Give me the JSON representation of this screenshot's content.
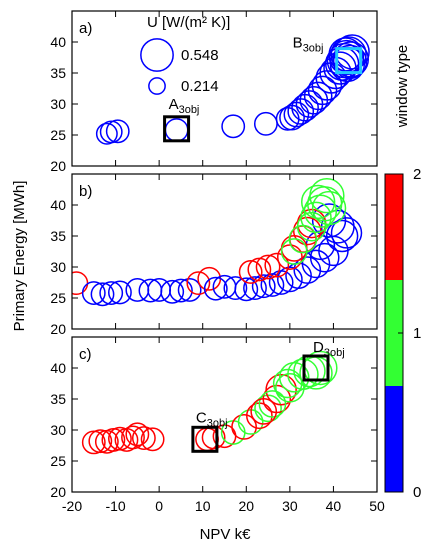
{
  "chart_data": {
    "type": "scatter",
    "xlabel": "NPV k€",
    "ylabel": "Primary Energy [MWh]",
    "xlim": [
      -20,
      50
    ],
    "ylim": [
      20,
      45
    ],
    "xticks": [
      -20,
      -10,
      0,
      10,
      20,
      30,
      40,
      50
    ],
    "yticks": [
      20,
      25,
      30,
      35,
      40
    ],
    "colorbar": {
      "label": "window type",
      "ticks": [
        "0",
        "1",
        "2"
      ],
      "colors": [
        "#0000ff",
        "#33ff33",
        "#ff0000"
      ]
    },
    "size_legend": {
      "title": "U [W/(m² K)]",
      "entries": [
        {
          "label": "0.548",
          "u": 0.548
        },
        {
          "label": "0.214",
          "u": 0.214
        }
      ]
    },
    "panels": [
      {
        "label": "a)",
        "annotations": [
          {
            "base": "A",
            "sub": "3obj",
            "x": 4,
            "y": 26
          },
          {
            "base": "B",
            "sub": "3obj",
            "x": 43.5,
            "y": 37
          }
        ],
        "points": [
          {
            "x": -12,
            "y": 25.2,
            "u": 0.3,
            "c": 0
          },
          {
            "x": -11,
            "y": 25.5,
            "u": 0.32,
            "c": 0
          },
          {
            "x": -9.5,
            "y": 25.6,
            "u": 0.34,
            "c": 0
          },
          {
            "x": 4,
            "y": 25.8,
            "u": 0.34,
            "c": 0
          },
          {
            "x": 17,
            "y": 26.4,
            "u": 0.34,
            "c": 0
          },
          {
            "x": 24.5,
            "y": 26.8,
            "u": 0.34,
            "c": 0
          },
          {
            "x": 29.5,
            "y": 27.6,
            "u": 0.34,
            "c": 0
          },
          {
            "x": 30.5,
            "y": 27.8,
            "u": 0.38,
            "c": 0
          },
          {
            "x": 31.5,
            "y": 28.3,
            "u": 0.38,
            "c": 0
          },
          {
            "x": 32.5,
            "y": 28.8,
            "u": 0.4,
            "c": 0
          },
          {
            "x": 33.5,
            "y": 29.4,
            "u": 0.42,
            "c": 0
          },
          {
            "x": 34.5,
            "y": 30,
            "u": 0.42,
            "c": 0
          },
          {
            "x": 35.5,
            "y": 30.6,
            "u": 0.44,
            "c": 0
          },
          {
            "x": 36.5,
            "y": 31.3,
            "u": 0.44,
            "c": 0
          },
          {
            "x": 37.5,
            "y": 32.2,
            "u": 0.46,
            "c": 0
          },
          {
            "x": 38.5,
            "y": 33,
            "u": 0.48,
            "c": 0
          },
          {
            "x": 39.5,
            "y": 34.2,
            "u": 0.5,
            "c": 0
          },
          {
            "x": 40.5,
            "y": 35,
            "u": 0.52,
            "c": 0
          },
          {
            "x": 41.5,
            "y": 35.8,
            "u": 0.54,
            "c": 0
          },
          {
            "x": 42,
            "y": 36.5,
            "u": 0.56,
            "c": 0
          },
          {
            "x": 42.5,
            "y": 37,
            "u": 0.58,
            "c": 0
          },
          {
            "x": 43,
            "y": 37.5,
            "u": 0.58,
            "c": 0
          },
          {
            "x": 43.5,
            "y": 38,
            "u": 0.6,
            "c": 0
          },
          {
            "x": 44,
            "y": 37.2,
            "u": 0.6,
            "c": 0
          },
          {
            "x": 43.2,
            "y": 36.4,
            "u": 0.58,
            "c": 0
          },
          {
            "x": 44.3,
            "y": 38.4,
            "u": 0.58,
            "c": 0
          },
          {
            "x": 43.8,
            "y": 36.8,
            "u": 0.56,
            "c": 0
          },
          {
            "x": 42.8,
            "y": 38,
            "u": 0.56,
            "c": 0
          }
        ]
      },
      {
        "label": "b)",
        "points": [
          {
            "x": -19,
            "y": 27.4,
            "u": 0.34,
            "c": 2
          },
          {
            "x": -15,
            "y": 25.8,
            "u": 0.34,
            "c": 0
          },
          {
            "x": -13,
            "y": 25.6,
            "u": 0.34,
            "c": 0
          },
          {
            "x": -11,
            "y": 25.8,
            "u": 0.34,
            "c": 0
          },
          {
            "x": -9,
            "y": 25.9,
            "u": 0.34,
            "c": 0
          },
          {
            "x": -5,
            "y": 26.3,
            "u": 0.34,
            "c": 0
          },
          {
            "x": -2,
            "y": 26.2,
            "u": 0.34,
            "c": 0
          },
          {
            "x": 0,
            "y": 26.3,
            "u": 0.34,
            "c": 0
          },
          {
            "x": 3,
            "y": 26,
            "u": 0.34,
            "c": 0
          },
          {
            "x": 5,
            "y": 26.2,
            "u": 0.34,
            "c": 0
          },
          {
            "x": 7,
            "y": 26.3,
            "u": 0.34,
            "c": 0
          },
          {
            "x": 9,
            "y": 27.4,
            "u": 0.34,
            "c": 2
          },
          {
            "x": 11.5,
            "y": 28.1,
            "u": 0.34,
            "c": 2
          },
          {
            "x": 13,
            "y": 26.5,
            "u": 0.34,
            "c": 0
          },
          {
            "x": 15,
            "y": 26.8,
            "u": 0.34,
            "c": 0
          },
          {
            "x": 17.5,
            "y": 26.6,
            "u": 0.34,
            "c": 0
          },
          {
            "x": 20,
            "y": 26.4,
            "u": 0.34,
            "c": 0
          },
          {
            "x": 22,
            "y": 26.6,
            "u": 0.34,
            "c": 0
          },
          {
            "x": 24,
            "y": 26.9,
            "u": 0.34,
            "c": 0
          },
          {
            "x": 26,
            "y": 27.1,
            "u": 0.34,
            "c": 0
          },
          {
            "x": 28,
            "y": 27.5,
            "u": 0.36,
            "c": 0
          },
          {
            "x": 30,
            "y": 28,
            "u": 0.38,
            "c": 0
          },
          {
            "x": 32,
            "y": 28.6,
            "u": 0.4,
            "c": 0
          },
          {
            "x": 34,
            "y": 29.5,
            "u": 0.42,
            "c": 0
          },
          {
            "x": 36,
            "y": 30.5,
            "u": 0.44,
            "c": 0
          },
          {
            "x": 38,
            "y": 31.5,
            "u": 0.46,
            "c": 0
          },
          {
            "x": 40,
            "y": 32.6,
            "u": 0.48,
            "c": 0
          },
          {
            "x": 42,
            "y": 35,
            "u": 0.52,
            "c": 0
          },
          {
            "x": 41,
            "y": 36.5,
            "u": 0.55,
            "c": 0
          },
          {
            "x": 39,
            "y": 37.5,
            "u": 0.56,
            "c": 0
          },
          {
            "x": 43,
            "y": 35.5,
            "u": 0.5,
            "c": 0
          },
          {
            "x": 37,
            "y": 33.5,
            "u": 0.46,
            "c": 0
          },
          {
            "x": 21,
            "y": 29.2,
            "u": 0.34,
            "c": 2
          },
          {
            "x": 23,
            "y": 29.6,
            "u": 0.34,
            "c": 2
          },
          {
            "x": 25,
            "y": 30,
            "u": 0.36,
            "c": 2
          },
          {
            "x": 27,
            "y": 30.3,
            "u": 0.36,
            "c": 2
          },
          {
            "x": 30,
            "y": 31.6,
            "u": 0.38,
            "c": 2
          },
          {
            "x": 31,
            "y": 33,
            "u": 0.4,
            "c": 2
          },
          {
            "x": 33,
            "y": 34.5,
            "u": 0.42,
            "c": 2
          },
          {
            "x": 34,
            "y": 35.8,
            "u": 0.44,
            "c": 2
          },
          {
            "x": 35,
            "y": 37,
            "u": 0.46,
            "c": 2
          },
          {
            "x": 37,
            "y": 39,
            "u": 0.54,
            "c": 1
          },
          {
            "x": 38,
            "y": 40.2,
            "u": 0.58,
            "c": 1
          },
          {
            "x": 36,
            "y": 38,
            "u": 0.5,
            "c": 1
          },
          {
            "x": 39,
            "y": 39.5,
            "u": 0.56,
            "c": 1
          },
          {
            "x": 35,
            "y": 36.5,
            "u": 0.46,
            "c": 1
          },
          {
            "x": 33,
            "y": 34.5,
            "u": 0.44,
            "c": 1
          },
          {
            "x": 31,
            "y": 32.5,
            "u": 0.4,
            "c": 1
          },
          {
            "x": 38.5,
            "y": 41.5,
            "u": 0.58,
            "c": 1
          },
          {
            "x": 36.5,
            "y": 40.5,
            "u": 0.56,
            "c": 1
          }
        ]
      },
      {
        "label": "c)",
        "annotations": [
          {
            "base": "C",
            "sub": "3obj",
            "x": 10.5,
            "y": 28.5
          },
          {
            "base": "D",
            "sub": "3obj",
            "x": 36,
            "y": 40
          }
        ],
        "points": [
          {
            "x": -15,
            "y": 28,
            "u": 0.34,
            "c": 2
          },
          {
            "x": -13.5,
            "y": 28.2,
            "u": 0.34,
            "c": 2
          },
          {
            "x": -12,
            "y": 28.1,
            "u": 0.34,
            "c": 2
          },
          {
            "x": -10.5,
            "y": 28.4,
            "u": 0.34,
            "c": 2
          },
          {
            "x": -9,
            "y": 28.6,
            "u": 0.34,
            "c": 2
          },
          {
            "x": -7.5,
            "y": 28.4,
            "u": 0.34,
            "c": 2
          },
          {
            "x": -6,
            "y": 28.8,
            "u": 0.34,
            "c": 2
          },
          {
            "x": -5,
            "y": 29.3,
            "u": 0.34,
            "c": 2
          },
          {
            "x": -3.5,
            "y": 28.7,
            "u": 0.34,
            "c": 2
          },
          {
            "x": -1.5,
            "y": 28.5,
            "u": 0.34,
            "c": 2
          },
          {
            "x": 11,
            "y": 28.5,
            "u": 0.34,
            "c": 2
          },
          {
            "x": 12.5,
            "y": 28.8,
            "u": 0.34,
            "c": 2
          },
          {
            "x": 15,
            "y": 29,
            "u": 0.34,
            "c": 2
          },
          {
            "x": 17,
            "y": 29.6,
            "u": 0.36,
            "c": 1
          },
          {
            "x": 19.5,
            "y": 30.5,
            "u": 0.38,
            "c": 2
          },
          {
            "x": 21,
            "y": 31.3,
            "u": 0.38,
            "c": 1
          },
          {
            "x": 23,
            "y": 32.3,
            "u": 0.4,
            "c": 2
          },
          {
            "x": 25,
            "y": 33.5,
            "u": 0.42,
            "c": 1
          },
          {
            "x": 27,
            "y": 35,
            "u": 0.44,
            "c": 2
          },
          {
            "x": 28,
            "y": 36.5,
            "u": 0.5,
            "c": 2
          },
          {
            "x": 29.5,
            "y": 37.5,
            "u": 0.46,
            "c": 1
          },
          {
            "x": 31,
            "y": 38.5,
            "u": 0.48,
            "c": 1
          },
          {
            "x": 33,
            "y": 39,
            "u": 0.5,
            "c": 1
          },
          {
            "x": 34.5,
            "y": 39.5,
            "u": 0.52,
            "c": 1
          },
          {
            "x": 36,
            "y": 39.2,
            "u": 0.54,
            "c": 1
          },
          {
            "x": 37,
            "y": 40,
            "u": 0.56,
            "c": 1
          },
          {
            "x": 26,
            "y": 34.2,
            "u": 0.42,
            "c": 1
          },
          {
            "x": 24,
            "y": 33,
            "u": 0.4,
            "c": 2
          },
          {
            "x": 30,
            "y": 36.8,
            "u": 0.46,
            "c": 1
          }
        ]
      }
    ]
  }
}
